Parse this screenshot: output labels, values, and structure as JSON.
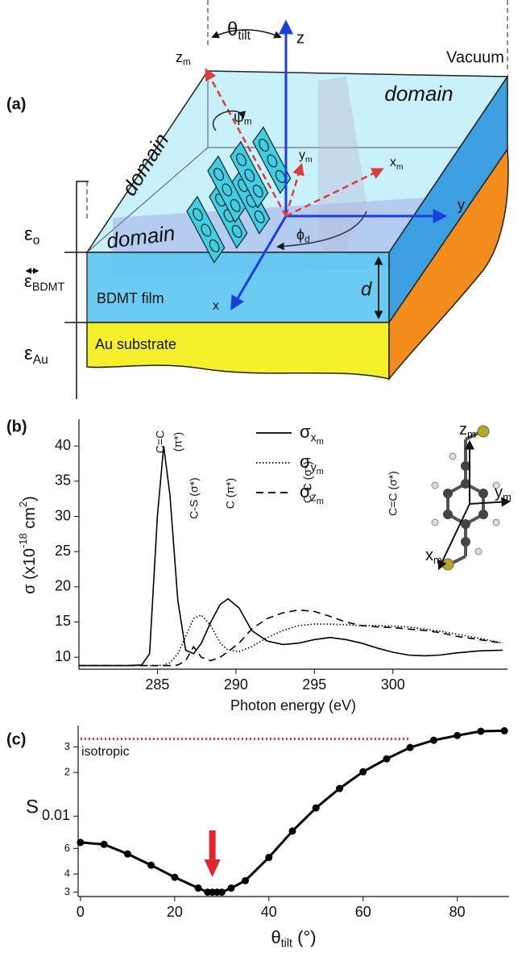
{
  "panel_a": {
    "label": "(a)",
    "theta_tilt": {
      "symbol": "θ",
      "sub": "tilt"
    },
    "z": "z",
    "z_m": {
      "symbol": "z",
      "sub": "m"
    },
    "vacuum": "Vacuum",
    "domains": [
      "domain",
      "domain",
      "domain"
    ],
    "psi_m": {
      "symbol": "ψ",
      "sub": "m"
    },
    "y_m": {
      "symbol": "y",
      "sub": "m"
    },
    "x_m": {
      "symbol": "x",
      "sub": "m"
    },
    "y": "y",
    "x": "x",
    "phi_d": {
      "symbol": "ϕ",
      "sub": "d"
    },
    "d": "d",
    "film": "BDMT film",
    "substrate": "Au substrate",
    "eps_o": {
      "symbol": "ε",
      "sub": "o"
    },
    "eps_bdmt": {
      "symbol": "ε",
      "sub": "BDMT"
    },
    "eps_au": {
      "symbol": "ε",
      "sub": "Au"
    }
  },
  "chart_data": [
    {
      "type": "line",
      "panel_label": "(b)",
      "xlabel": "Photon energy (eV)",
      "ylabel": {
        "symbol": "σ (x10",
        "exp": "-18",
        "unit": " cm",
        "unit_exp": "2",
        "close": ")"
      },
      "x": [
        280,
        283,
        284,
        284.5,
        285,
        285.4,
        285.8,
        286.3,
        286.8,
        287.3,
        287.8,
        288.4,
        289,
        289.5,
        290.2,
        291,
        292,
        293,
        294,
        295,
        296,
        297,
        298,
        299,
        300,
        301,
        302,
        303,
        304,
        305.5,
        307
      ],
      "xlim": [
        280,
        307.3
      ],
      "xticks": [
        285,
        290,
        295,
        300
      ],
      "ylim": [
        8.3,
        43.8
      ],
      "yticks": [
        10,
        15,
        20,
        25,
        30,
        35,
        40
      ],
      "series": [
        {
          "name": "σ",
          "sub": "x",
          "subsub": "m",
          "color": "#000000",
          "dash": "solid",
          "values": [
            8.8,
            8.8,
            8.9,
            10.5,
            30,
            40,
            33,
            18,
            11,
            10.5,
            12,
            15,
            17.5,
            18.3,
            17,
            13.8,
            12.3,
            11.8,
            12,
            12.5,
            12.8,
            12.5,
            12,
            11.3,
            10.7,
            10.3,
            10.2,
            10.3,
            10.6,
            10.9,
            11
          ]
        },
        {
          "name": "σ",
          "sub": "y",
          "subsub": "m",
          "color": "#000000",
          "dash": "dotted",
          "values": [
            8.8,
            8.8,
            8.8,
            8.8,
            8.8,
            8.9,
            9.2,
            10.5,
            13,
            15.5,
            16,
            14.5,
            12,
            11,
            10.8,
            11.5,
            12.8,
            13.8,
            14.5,
            14.7,
            14.7,
            14.6,
            14.5,
            14.5,
            14.4,
            14.3,
            14,
            13.7,
            13.3,
            12.7,
            12
          ]
        },
        {
          "name": "σ",
          "sub": "z",
          "subsub": "m",
          "color": "#000000",
          "dash": "dashed",
          "values": [
            8.8,
            8.8,
            8.8,
            8.8,
            8.8,
            8.8,
            8.8,
            8.9,
            9.5,
            11.5,
            10,
            9.5,
            10,
            10.8,
            12,
            14,
            15.5,
            16.3,
            16.7,
            16.5,
            15.8,
            15,
            14.5,
            14.3,
            14.2,
            14,
            13.8,
            13.5,
            13,
            12.5,
            12
          ]
        }
      ],
      "annotations": [
        "C=C",
        "(π*)",
        "C-S (σ*)",
        "C (π*)",
        "C-C (σ*)",
        "C=C (σ*)"
      ],
      "inset": {
        "z_m": {
          "symbol": "z",
          "sub": "m"
        },
        "y_m": {
          "symbol": "y",
          "sub": "m"
        },
        "x_m": {
          "symbol": "x",
          "sub": "m"
        }
      }
    },
    {
      "type": "line",
      "panel_label": "(c)",
      "xlabel": {
        "symbol": "θ",
        "sub": "tilt",
        "unit": " (°)"
      },
      "ylabel": "S",
      "log_y": true,
      "x": [
        0,
        5,
        10,
        15,
        20,
        25,
        27,
        28,
        29,
        30,
        32,
        35,
        40,
        45,
        50,
        55,
        60,
        65,
        70,
        75,
        80,
        85,
        90
      ],
      "xlim": [
        -0.5,
        91
      ],
      "xticks": [
        0,
        20,
        40,
        60,
        80
      ],
      "ylim": [
        0.0028,
        0.042
      ],
      "yticks": [
        {
          "value": 0.003,
          "label": "3"
        },
        {
          "value": 0.004,
          "label": "4"
        },
        {
          "value": 0.006,
          "label": "6"
        },
        0.01,
        {
          "value": 0.02,
          "label": "2"
        },
        {
          "value": 0.03,
          "label": "3"
        }
      ],
      "series": [
        {
          "color": "#000000",
          "values": [
            0.0066,
            0.0064,
            0.0055,
            0.0046,
            0.0038,
            0.0032,
            0.003,
            0.003,
            0.003,
            0.003,
            0.0032,
            0.0036,
            0.0052,
            0.0079,
            0.0114,
            0.0155,
            0.0202,
            0.0248,
            0.0297,
            0.0333,
            0.0359,
            0.0384,
            0.0387
          ]
        }
      ],
      "reference": {
        "label": "isotropic",
        "value": 0.034,
        "extent": [
          0,
          70
        ],
        "color": "#e0303a"
      },
      "arrow_x": 28,
      "arrow_color": "#e0262b"
    }
  ]
}
